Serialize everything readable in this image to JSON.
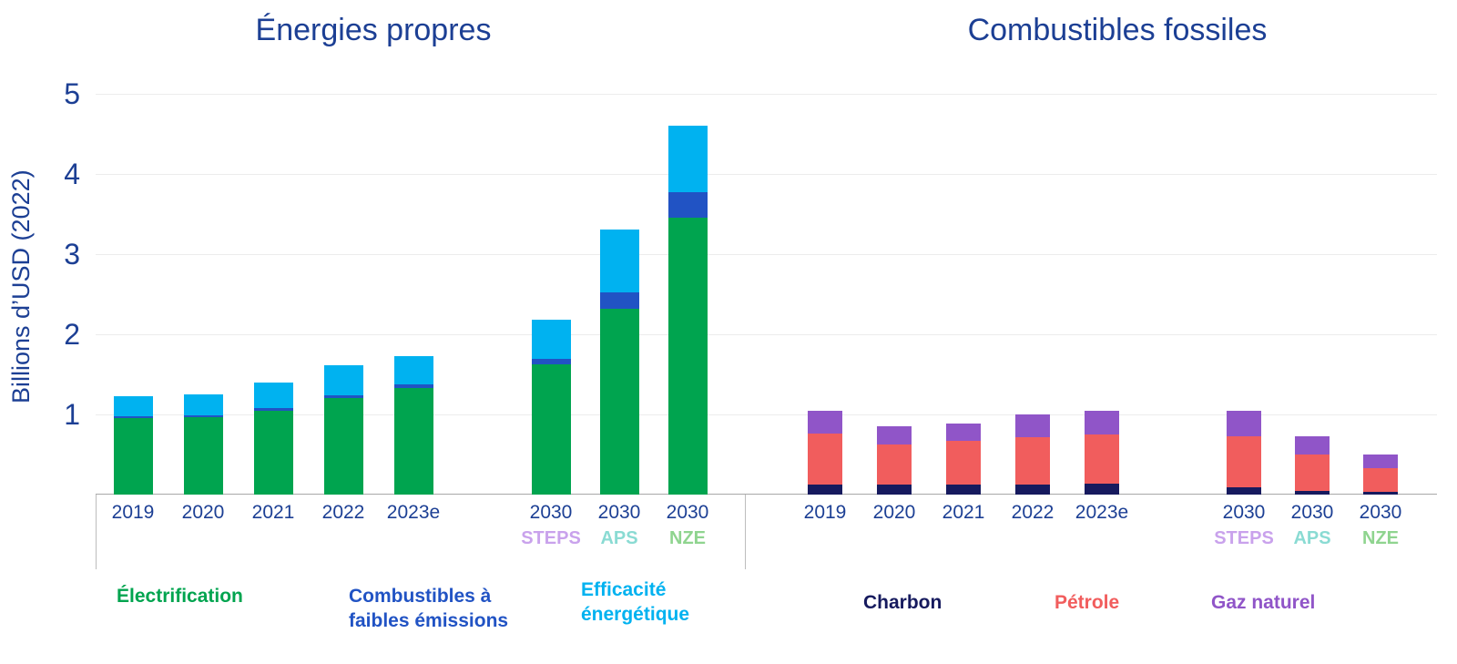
{
  "titles": {
    "left": "Énergies propres",
    "right": "Combustibles fossiles"
  },
  "y_axis": {
    "label": "Billions d’USD (2022)",
    "ticks": [
      1,
      2,
      3,
      4,
      5
    ]
  },
  "scenario_colors": {
    "STEPS": "#c9a2ec",
    "APS": "#8adbd3",
    "NZE": "#8fd48f"
  },
  "chart_data": {
    "type": "bar",
    "stacked": true,
    "title": "Énergies propres / Combustibles fossiles",
    "ylabel": "Billions d’USD (2022)",
    "ylim": [
      0,
      5.2
    ],
    "grid": true,
    "panels": [
      {
        "title": "Énergies propres",
        "categories": [
          "2019",
          "2020",
          "2021",
          "2022",
          "2023e",
          "2030",
          "2030",
          "2030"
        ],
        "sublabels": [
          "",
          "",
          "",
          "",
          "",
          "STEPS",
          "APS",
          "NZE"
        ],
        "series": [
          {
            "name": "Électrification",
            "color": "#00a44f",
            "values": [
              0.95,
              0.97,
              1.05,
              1.2,
              1.33,
              1.62,
              2.32,
              3.45
            ]
          },
          {
            "name": "Combustibles à faibles émissions",
            "color": "#2153c4",
            "values": [
              0.02,
              0.02,
              0.03,
              0.03,
              0.04,
              0.07,
              0.2,
              0.32
            ]
          },
          {
            "name": "Efficacité énergétique",
            "color": "#00b2f0",
            "values": [
              0.25,
              0.26,
              0.32,
              0.38,
              0.35,
              0.49,
              0.78,
              0.83
            ]
          }
        ]
      },
      {
        "title": "Combustibles fossiles",
        "categories": [
          "2019",
          "2020",
          "2021",
          "2022",
          "2023e",
          "2030",
          "2030",
          "2030"
        ],
        "sublabels": [
          "",
          "",
          "",
          "",
          "",
          "STEPS",
          "APS",
          "NZE"
        ],
        "series": [
          {
            "name": "Charbon",
            "color": "#161a5e",
            "values": [
              0.13,
              0.12,
              0.13,
              0.13,
              0.14,
              0.09,
              0.05,
              0.03
            ]
          },
          {
            "name": "Pétrole",
            "color": "#f15d5d",
            "values": [
              0.64,
              0.5,
              0.55,
              0.59,
              0.61,
              0.64,
              0.45,
              0.3
            ]
          },
          {
            "name": "Gaz naturel",
            "color": "#9055c8",
            "values": [
              0.28,
              0.23,
              0.22,
              0.28,
              0.3,
              0.32,
              0.23,
              0.17
            ]
          }
        ]
      }
    ]
  },
  "legend": {
    "left": [
      {
        "label": "Électrification",
        "color": "#00a44f"
      },
      {
        "label": "Combustibles à\nfaibles émissions",
        "color": "#2153c4"
      },
      {
        "label": "Efficacité\nénergétique",
        "color": "#00b2f0"
      }
    ],
    "right": [
      {
        "label": "Charbon",
        "color": "#161a5e"
      },
      {
        "label": "Pétrole",
        "color": "#f15d5d"
      },
      {
        "label": "Gaz naturel",
        "color": "#9055c8"
      }
    ]
  }
}
